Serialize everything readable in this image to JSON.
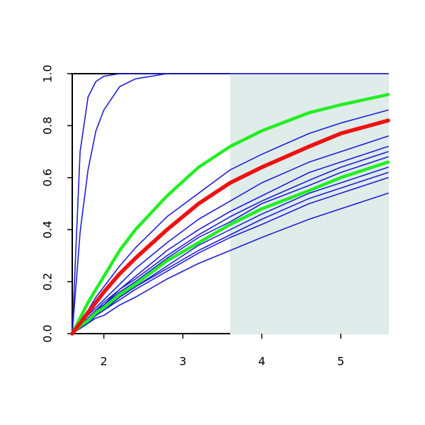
{
  "chart_data": {
    "type": "line",
    "x": [
      1.6,
      1.7,
      1.8,
      1.9,
      2.0,
      2.2,
      2.4,
      2.8,
      3.2,
      3.6,
      4.0,
      4.6,
      5.0,
      5.6
    ],
    "xlim": [
      1.6,
      5.6
    ],
    "ylim": [
      0,
      1
    ],
    "xticks": [
      2,
      3,
      4,
      5
    ],
    "yticks": [
      {
        "value": 0,
        "label": "0.0"
      },
      0.2,
      0.4,
      0.6,
      0.8,
      {
        "value": 1,
        "label": "1.0"
      }
    ],
    "shaded_region": {
      "xlim": [
        3.6,
        5.6
      ],
      "ylim": [
        0,
        1
      ],
      "color": "#dfecea"
    },
    "series": [
      {
        "color": "#1f1fd6",
        "width": 1.6,
        "values": [
          0,
          0.7,
          0.91,
          0.97,
          0.99,
          1,
          1,
          1,
          1,
          1,
          1,
          1,
          1,
          1
        ]
      },
      {
        "color": "#1f1fd6",
        "width": 1.6,
        "values": [
          0,
          0.39,
          0.63,
          0.78,
          0.86,
          0.95,
          0.98,
          1,
          1,
          1,
          1,
          1,
          1,
          1
        ]
      },
      {
        "color": "#1f1fd6",
        "width": 1.6,
        "values": [
          0,
          0.05,
          0.09,
          0.14,
          0.18,
          0.26,
          0.33,
          0.45,
          0.54,
          0.63,
          0.69,
          0.77,
          0.81,
          0.86
        ]
      },
      {
        "color": "#1f1fd6",
        "width": 1.6,
        "values": [
          0,
          0.04,
          0.07,
          0.1,
          0.13,
          0.19,
          0.25,
          0.35,
          0.44,
          0.51,
          0.58,
          0.66,
          0.7,
          0.76
        ]
      },
      {
        "color": "#1f1fd6",
        "width": 1.6,
        "values": [
          0,
          0.03,
          0.06,
          0.09,
          0.12,
          0.17,
          0.22,
          0.32,
          0.4,
          0.47,
          0.53,
          0.62,
          0.66,
          0.72
        ]
      },
      {
        "color": "#1f1fd6",
        "width": 1.6,
        "values": [
          0,
          0.03,
          0.06,
          0.09,
          0.11,
          0.17,
          0.21,
          0.3,
          0.38,
          0.45,
          0.51,
          0.59,
          0.64,
          0.7
        ]
      },
      {
        "color": "#1f1fd6",
        "width": 1.6,
        "values": [
          0,
          0.03,
          0.06,
          0.08,
          0.11,
          0.16,
          0.2,
          0.29,
          0.37,
          0.43,
          0.5,
          0.57,
          0.62,
          0.68
        ]
      },
      {
        "color": "#1f1fd6",
        "width": 1.6,
        "values": [
          0,
          0.03,
          0.05,
          0.07,
          0.1,
          0.14,
          0.18,
          0.26,
          0.34,
          0.4,
          0.46,
          0.54,
          0.58,
          0.64
        ]
      },
      {
        "color": "#1f1fd6",
        "width": 1.6,
        "values": [
          0,
          0.02,
          0.05,
          0.07,
          0.09,
          0.14,
          0.18,
          0.25,
          0.32,
          0.38,
          0.44,
          0.52,
          0.56,
          0.62
        ]
      },
      {
        "color": "#1f1fd6",
        "width": 1.6,
        "values": [
          0,
          0.02,
          0.04,
          0.07,
          0.09,
          0.13,
          0.17,
          0.24,
          0.31,
          0.37,
          0.42,
          0.5,
          0.54,
          0.6
        ]
      },
      {
        "color": "#1f1fd6",
        "width": 1.6,
        "values": [
          0,
          0.02,
          0.04,
          0.06,
          0.07,
          0.11,
          0.14,
          0.21,
          0.27,
          0.32,
          0.37,
          0.44,
          0.48,
          0.54
        ]
      },
      {
        "color": "#22ee22",
        "width": 4.5,
        "values": [
          0,
          0.03,
          0.05,
          0.08,
          0.1,
          0.15,
          0.19,
          0.28,
          0.35,
          0.42,
          0.48,
          0.55,
          0.6,
          0.66
        ]
      },
      {
        "color": "#22ee22",
        "width": 4.5,
        "values": [
          0,
          0.06,
          0.12,
          0.17,
          0.22,
          0.32,
          0.4,
          0.53,
          0.64,
          0.72,
          0.78,
          0.85,
          0.88,
          0.92
        ]
      },
      {
        "color": "#ee1111",
        "width": 5.5,
        "values": [
          0,
          0.04,
          0.08,
          0.12,
          0.16,
          0.23,
          0.29,
          0.4,
          0.5,
          0.58,
          0.64,
          0.72,
          0.77,
          0.82
        ]
      }
    ]
  }
}
